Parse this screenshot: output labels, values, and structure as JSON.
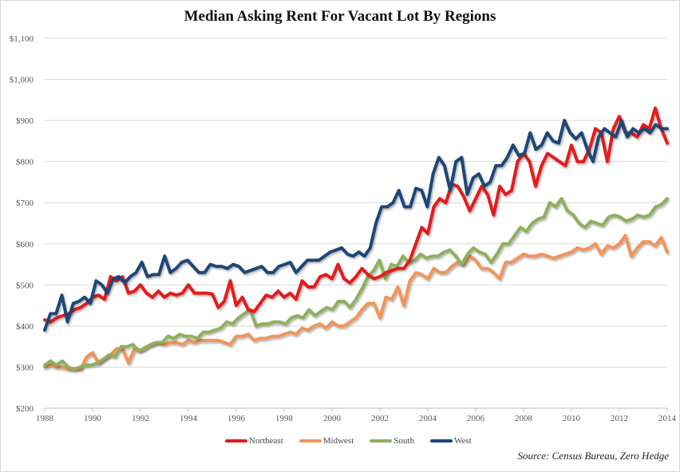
{
  "chart_data": {
    "type": "line",
    "title": "Median Asking Rent For Vacant Lot By Regions",
    "xlabel": "",
    "ylabel": "",
    "x_start": 1988,
    "x_step": 0.25,
    "xlim": [
      1988,
      2014
    ],
    "ylim": [
      200,
      1100
    ],
    "y_ticks": [
      200,
      300,
      400,
      500,
      600,
      700,
      800,
      900,
      1000,
      1100
    ],
    "y_tick_labels": [
      "$200",
      "$300",
      "$400",
      "$500",
      "$600",
      "$700",
      "$800",
      "$900",
      "$1,000",
      "$1,100"
    ],
    "x_ticks": [
      1988,
      1990,
      1992,
      1994,
      1996,
      1998,
      2000,
      2002,
      2004,
      2006,
      2008,
      2010,
      2012,
      2014
    ],
    "x_tick_labels": [
      "1988",
      "1990",
      "1992",
      "1994",
      "1996",
      "1998",
      "2000",
      "2002",
      "2004",
      "2006",
      "2008",
      "2010",
      "2012",
      "2014"
    ],
    "grid": true,
    "legend_position": "bottom",
    "series": [
      {
        "name": "Northeast",
        "color": "#e31a1c",
        "values": [
          415,
          410,
          420,
          425,
          430,
          440,
          445,
          455,
          470,
          475,
          465,
          520,
          510,
          520,
          480,
          485,
          500,
          480,
          470,
          485,
          470,
          480,
          475,
          480,
          500,
          480,
          480,
          480,
          478,
          445,
          460,
          510,
          450,
          470,
          440,
          435,
          455,
          475,
          470,
          485,
          470,
          480,
          465,
          510,
          495,
          495,
          520,
          525,
          515,
          550,
          515,
          505,
          520,
          540,
          525,
          515,
          520,
          530,
          535,
          540,
          540,
          560,
          600,
          640,
          625,
          690,
          710,
          700,
          745,
          740,
          715,
          680,
          710,
          740,
          720,
          670,
          740,
          720,
          730,
          800,
          820,
          800,
          740,
          790,
          820,
          810,
          800,
          790,
          840,
          800,
          800,
          830,
          880,
          870,
          800,
          880,
          910,
          870,
          870,
          860,
          890,
          880,
          930,
          880,
          845
        ]
      },
      {
        "name": "Midwest",
        "color": "#f0955a",
        "values": [
          300,
          305,
          300,
          300,
          295,
          295,
          295,
          325,
          335,
          310,
          320,
          330,
          345,
          345,
          310,
          345,
          340,
          350,
          355,
          360,
          355,
          360,
          360,
          355,
          365,
          360,
          365,
          365,
          365,
          365,
          360,
          355,
          375,
          375,
          380,
          365,
          370,
          370,
          375,
          375,
          380,
          385,
          380,
          395,
          390,
          400,
          405,
          395,
          410,
          400,
          400,
          410,
          420,
          440,
          455,
          455,
          420,
          470,
          465,
          495,
          450,
          510,
          530,
          525,
          515,
          540,
          530,
          530,
          545,
          555,
          550,
          570,
          560,
          540,
          540,
          530,
          515,
          555,
          555,
          565,
          575,
          570,
          570,
          575,
          570,
          565,
          570,
          575,
          580,
          590,
          585,
          590,
          600,
          575,
          595,
          590,
          600,
          620,
          570,
          590,
          605,
          605,
          595,
          615,
          580
        ]
      },
      {
        "name": "South",
        "color": "#8fb05c",
        "values": [
          305,
          315,
          305,
          315,
          300,
          295,
          300,
          305,
          305,
          310,
          320,
          330,
          325,
          350,
          350,
          355,
          340,
          345,
          355,
          360,
          360,
          375,
          370,
          380,
          375,
          375,
          370,
          385,
          385,
          390,
          395,
          410,
          405,
          420,
          430,
          440,
          400,
          405,
          405,
          410,
          410,
          405,
          420,
          425,
          420,
          440,
          425,
          435,
          445,
          440,
          460,
          460,
          445,
          465,
          490,
          520,
          535,
          560,
          515,
          550,
          545,
          570,
          555,
          560,
          575,
          565,
          570,
          570,
          580,
          585,
          570,
          550,
          575,
          590,
          580,
          575,
          555,
          575,
          600,
          600,
          620,
          640,
          630,
          650,
          660,
          665,
          700,
          690,
          710,
          680,
          670,
          650,
          640,
          655,
          650,
          645,
          665,
          670,
          665,
          655,
          660,
          670,
          665,
          670,
          690,
          695,
          710
        ]
      },
      {
        "name": "West",
        "color": "#1f4678",
        "values": [
          390,
          430,
          430,
          475,
          410,
          455,
          460,
          470,
          455,
          510,
          500,
          480,
          515,
          520,
          505,
          520,
          530,
          555,
          520,
          525,
          525,
          570,
          530,
          540,
          555,
          560,
          545,
          530,
          530,
          550,
          545,
          545,
          540,
          550,
          545,
          530,
          535,
          540,
          545,
          530,
          530,
          545,
          550,
          555,
          530,
          545,
          560,
          560,
          560,
          570,
          580,
          585,
          590,
          575,
          570,
          580,
          570,
          590,
          650,
          690,
          690,
          700,
          730,
          690,
          690,
          735,
          730,
          690,
          770,
          810,
          790,
          730,
          800,
          810,
          720,
          760,
          770,
          740,
          750,
          790,
          790,
          810,
          840,
          815,
          820,
          870,
          830,
          840,
          870,
          850,
          845,
          900,
          870,
          855,
          870,
          830,
          800,
          860,
          880,
          870,
          860,
          900,
          860,
          880,
          870,
          880,
          870,
          890,
          880,
          880
        ]
      }
    ]
  },
  "legend": {
    "items": [
      {
        "label": "Northeast",
        "color": "#e31a1c"
      },
      {
        "label": "Midwest",
        "color": "#f0955a"
      },
      {
        "label": "South",
        "color": "#8fb05c"
      },
      {
        "label": "West",
        "color": "#1f4678"
      }
    ]
  },
  "source": "Source: Census  Bureau,  Zero Hedge"
}
